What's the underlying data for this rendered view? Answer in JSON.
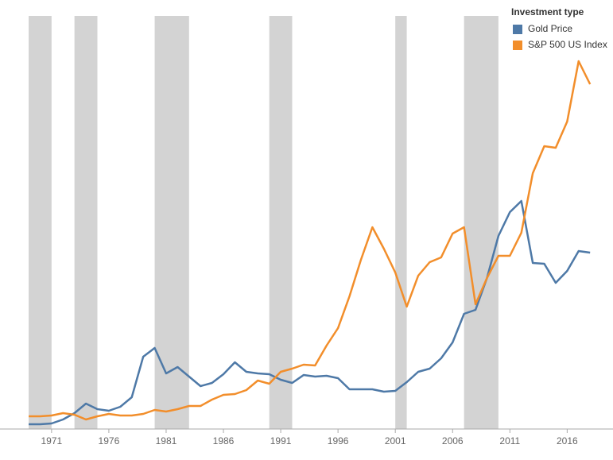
{
  "chart_data": {
    "type": "line",
    "legend_title": "Investment type",
    "x": [
      1969,
      1970,
      1971,
      1972,
      1973,
      1974,
      1975,
      1976,
      1977,
      1978,
      1979,
      1980,
      1981,
      1982,
      1983,
      1984,
      1985,
      1986,
      1987,
      1988,
      1989,
      1990,
      1991,
      1992,
      1993,
      1994,
      1995,
      1996,
      1997,
      1998,
      1999,
      2000,
      2001,
      2002,
      2003,
      2004,
      2005,
      2006,
      2007,
      2008,
      2009,
      2010,
      2011,
      2012,
      2013,
      2014,
      2015,
      2016,
      2017,
      2018
    ],
    "series": [
      {
        "name": "Gold Price",
        "color": "#4e79a7",
        "values": [
          6,
          6,
          7,
          12,
          20,
          32,
          25,
          23,
          28,
          40,
          91,
          102,
          70,
          78,
          66,
          54,
          58,
          69,
          84,
          72,
          70,
          69,
          62,
          58,
          68,
          66,
          67,
          64,
          50,
          50,
          50,
          47,
          48,
          59,
          72,
          76,
          89,
          109,
          145,
          150,
          190,
          243,
          273,
          287,
          209,
          208,
          184,
          199,
          224,
          222
        ]
      },
      {
        "name": "S&P 500 US Index",
        "color": "#f28e2b",
        "values": [
          16,
          16,
          17,
          20,
          18,
          12,
          16,
          19,
          17,
          17,
          19,
          24,
          22,
          25,
          29,
          29,
          37,
          43,
          44,
          49,
          61,
          57,
          72,
          76,
          81,
          80,
          105,
          127,
          167,
          213,
          254,
          227,
          197,
          154,
          193,
          210,
          216,
          246,
          254,
          157,
          190,
          218,
          218,
          247,
          322,
          356,
          354,
          387,
          463,
          434
        ]
      }
    ],
    "shaded_periods": [
      [
        1969,
        1971
      ],
      [
        1973,
        1975
      ],
      [
        1980,
        1983
      ],
      [
        1990,
        1992
      ],
      [
        2001,
        2002
      ],
      [
        2007,
        2010
      ]
    ],
    "shade_color": "#d3d3d3",
    "xlim": [
      1966.5,
      2020
    ],
    "xticks": [
      1971,
      1976,
      1981,
      1986,
      1991,
      1996,
      2001,
      2006,
      2011,
      2016
    ],
    "ylim": [
      0,
      540
    ],
    "legend": "top-right"
  }
}
